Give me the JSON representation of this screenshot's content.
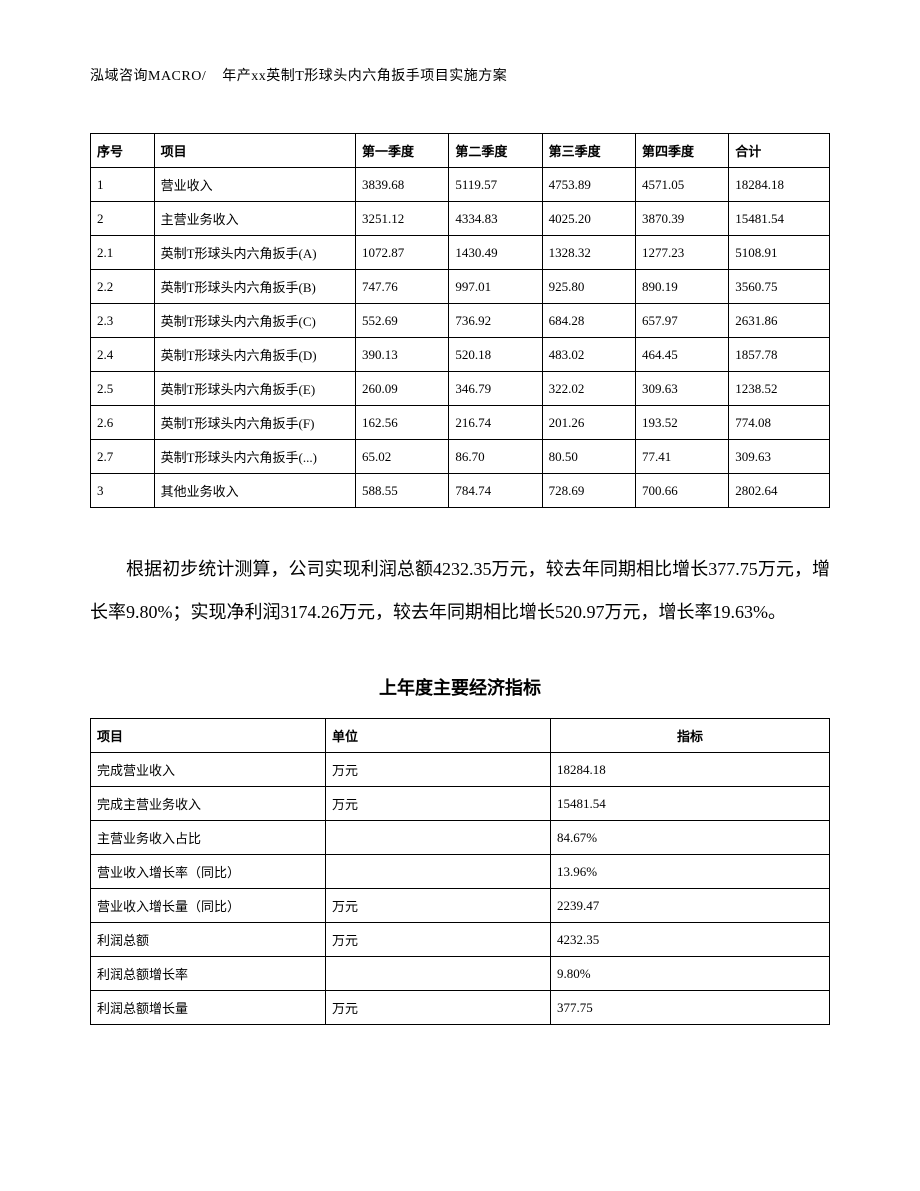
{
  "header": {
    "left": "泓域咨询MACRO/",
    "right": "年产xx英制T形球头内六角扳手项目实施方案"
  },
  "table1": {
    "columns": [
      "序号",
      "项目",
      "第一季度",
      "第二季度",
      "第三季度",
      "第四季度",
      "合计"
    ],
    "rows": [
      [
        "1",
        "营业收入",
        "3839.68",
        "5119.57",
        "4753.89",
        "4571.05",
        "18284.18"
      ],
      [
        "2",
        "主营业务收入",
        "3251.12",
        "4334.83",
        "4025.20",
        "3870.39",
        "15481.54"
      ],
      [
        "2.1",
        "英制T形球头内六角扳手(A)",
        "1072.87",
        "1430.49",
        "1328.32",
        "1277.23",
        "5108.91"
      ],
      [
        "2.2",
        "英制T形球头内六角扳手(B)",
        "747.76",
        "997.01",
        "925.80",
        "890.19",
        "3560.75"
      ],
      [
        "2.3",
        "英制T形球头内六角扳手(C)",
        "552.69",
        "736.92",
        "684.28",
        "657.97",
        "2631.86"
      ],
      [
        "2.4",
        "英制T形球头内六角扳手(D)",
        "390.13",
        "520.18",
        "483.02",
        "464.45",
        "1857.78"
      ],
      [
        "2.5",
        "英制T形球头内六角扳手(E)",
        "260.09",
        "346.79",
        "322.02",
        "309.63",
        "1238.52"
      ],
      [
        "2.6",
        "英制T形球头内六角扳手(F)",
        "162.56",
        "216.74",
        "201.26",
        "193.52",
        "774.08"
      ],
      [
        "2.7",
        "英制T形球头内六角扳手(...)",
        "65.02",
        "86.70",
        "80.50",
        "77.41",
        "309.63"
      ],
      [
        "3",
        "其他业务收入",
        "588.55",
        "784.74",
        "728.69",
        "700.66",
        "2802.64"
      ]
    ]
  },
  "paragraph": "根据初步统计测算，公司实现利润总额4232.35万元，较去年同期相比增长377.75万元，增长率9.80%；实现净利润3174.26万元，较去年同期相比增长520.97万元，增长率19.63%。",
  "section_title": "上年度主要经济指标",
  "table2": {
    "columns": [
      "项目",
      "单位",
      "指标"
    ],
    "rows": [
      [
        "完成营业收入",
        "万元",
        "18284.18"
      ],
      [
        "完成主营业务收入",
        "万元",
        "15481.54"
      ],
      [
        "主营业务收入占比",
        "",
        "84.67%"
      ],
      [
        "营业收入增长率（同比）",
        "",
        "13.96%"
      ],
      [
        "营业收入增长量（同比）",
        "万元",
        "2239.47"
      ],
      [
        "利润总额",
        "万元",
        "4232.35"
      ],
      [
        "利润总额增长率",
        "",
        "9.80%"
      ],
      [
        "利润总额增长量",
        "万元",
        "377.75"
      ]
    ]
  }
}
